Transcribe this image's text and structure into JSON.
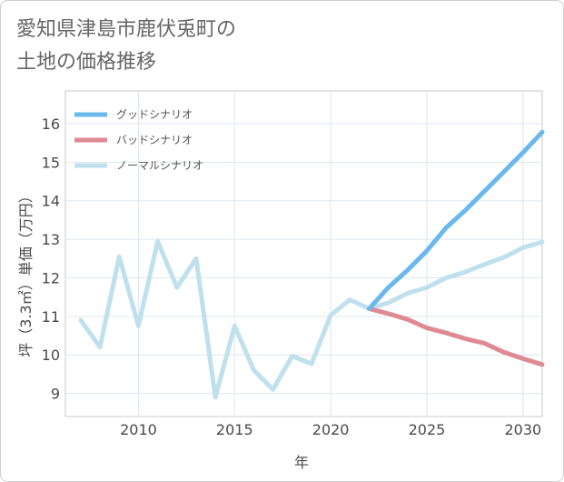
{
  "chart_data": {
    "type": "line",
    "title_line1": "愛知県津島市鹿伏兎町の",
    "title_line2": "土地の価格推移",
    "xlabel": "年",
    "ylabel": "坪（3.3㎡）単価（万円）",
    "xlim": [
      2006.2,
      2031
    ],
    "ylim": [
      8.4,
      16.85
    ],
    "x_ticks": [
      2010,
      2015,
      2020,
      2025,
      2030
    ],
    "y_ticks": [
      9,
      10,
      11,
      12,
      13,
      14,
      15,
      16
    ],
    "series": [
      {
        "name": "グッドシナリオ",
        "color": "#6bb9ec",
        "x": [
          2022,
          2023,
          2024,
          2025,
          2026,
          2027,
          2028,
          2029,
          2030,
          2031
        ],
        "y": [
          11.2,
          11.75,
          12.2,
          12.7,
          13.3,
          13.75,
          14.25,
          14.75,
          15.25,
          15.78
        ]
      },
      {
        "name": "バッドシナリオ",
        "color": "#df8a93",
        "x": [
          2022,
          2023,
          2024,
          2025,
          2026,
          2027,
          2028,
          2029,
          2030,
          2031
        ],
        "y": [
          11.2,
          11.07,
          10.92,
          10.7,
          10.57,
          10.42,
          10.3,
          10.07,
          9.9,
          9.75
        ]
      },
      {
        "name": "ノーマルシナリオ",
        "color": "#bfe0ed",
        "x": [
          2007,
          2008,
          2009,
          2010,
          2011,
          2012,
          2013,
          2014,
          2015,
          2016,
          2017,
          2018,
          2019,
          2020,
          2021,
          2022,
          2023,
          2024,
          2025,
          2026,
          2027,
          2028,
          2029,
          2030,
          2031
        ],
        "y": [
          10.9,
          10.2,
          12.55,
          10.75,
          12.95,
          11.75,
          12.5,
          8.9,
          10.75,
          9.6,
          9.1,
          9.97,
          9.77,
          11.03,
          11.43,
          11.2,
          11.35,
          11.6,
          11.75,
          12.0,
          12.15,
          12.35,
          12.53,
          12.78,
          12.93
        ]
      }
    ]
  }
}
